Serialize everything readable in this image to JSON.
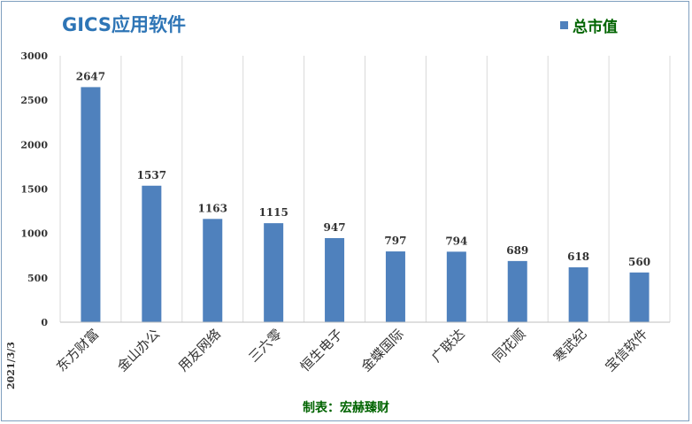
{
  "chart_data": {
    "type": "bar",
    "title": "GICS应用软件",
    "categories": [
      "东方财富",
      "金山办公",
      "用友网络",
      "三六零",
      "恒生电子",
      "金蝶国际",
      "广联达",
      "同花顺",
      "寒武纪",
      "宝信软件"
    ],
    "series": [
      {
        "name": "总市值",
        "values": [
          2647,
          1537,
          1163,
          1115,
          947,
          797,
          794,
          689,
          618,
          560
        ]
      }
    ],
    "ylim": [
      0,
      3000
    ],
    "yticks": [
      "0",
      "500",
      "1000",
      "1500",
      "2000",
      "2500",
      "3000"
    ],
    "grid": "vertical",
    "legend_position": "top-right",
    "bar_color": "#4f81bd"
  },
  "date": "2021/3/3",
  "source": "制表：宏赫臻财"
}
